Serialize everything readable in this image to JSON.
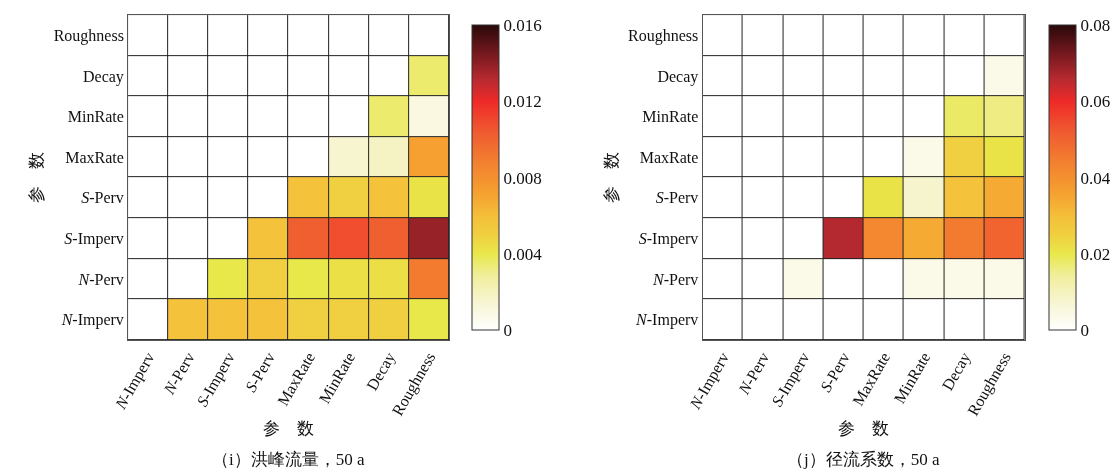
{
  "chart_data": [
    {
      "type": "heatmap",
      "title": "（i）洪峰流量，50 a",
      "xlabel": "参　数",
      "ylabel": "参　数",
      "categories": [
        "N-Imperv",
        "N-Perv",
        "S-Imperv",
        "S-Perv",
        "MaxRate",
        "MinRate",
        "Decay",
        "Roughness"
      ],
      "y_categories": [
        "Roughness",
        "Decay",
        "MinRate",
        "MaxRate",
        "S-Perv",
        "S-Imperv",
        "N-Perv",
        "N-Imperv"
      ],
      "cells": [
        [
          0,
          0,
          0,
          0,
          0,
          0,
          0,
          0
        ],
        [
          0,
          0,
          0,
          0,
          0,
          0,
          0,
          0.0035
        ],
        [
          0,
          0,
          0,
          0,
          0,
          0,
          0.0035,
          0.001
        ],
        [
          0,
          0,
          0,
          0,
          0,
          0.0015,
          0.0018,
          0.0072
        ],
        [
          0,
          0,
          0,
          0,
          0.0058,
          0.005,
          0.0058,
          0.0042
        ],
        [
          0,
          0,
          0,
          0.0058,
          0.0102,
          0.0108,
          0.0102,
          0.0138
        ],
        [
          0,
          0,
          0.004,
          0.005,
          0.004,
          0.0043,
          0.0044,
          0.009
        ],
        [
          0,
          0.0058,
          0.0058,
          0.0058,
          0.005,
          0.005,
          0.005,
          0.004
        ]
      ],
      "clim": [
        0,
        0.016
      ],
      "cticks": [
        0,
        0.004,
        0.008,
        0.012,
        0.016
      ]
    },
    {
      "type": "heatmap",
      "title": "（j）径流系数，50 a",
      "xlabel": "参　数",
      "ylabel": "参　数",
      "categories": [
        "N-Imperv",
        "N-Perv",
        "S-Imperv",
        "S-Perv",
        "MaxRate",
        "MinRate",
        "Decay",
        "Roughness"
      ],
      "y_categories": [
        "Roughness",
        "Decay",
        "MinRate",
        "MaxRate",
        "S-Perv",
        "S-Imperv",
        "N-Perv",
        "N-Imperv"
      ],
      "cells": [
        [
          0,
          0,
          0,
          0,
          0,
          0,
          0,
          0
        ],
        [
          0,
          0,
          0,
          0,
          0,
          0,
          0,
          0.004
        ],
        [
          0,
          0,
          0,
          0,
          0,
          0,
          0.018,
          0.016
        ],
        [
          0,
          0,
          0,
          0,
          0,
          0.004,
          0.025,
          0.021
        ],
        [
          0,
          0,
          0,
          0,
          0.021,
          0.008,
          0.029,
          0.034
        ],
        [
          0,
          0,
          0,
          0.066,
          0.042,
          0.034,
          0.045,
          0.05
        ],
        [
          0,
          0,
          0.004,
          0,
          0,
          0.004,
          0.004,
          0.004
        ],
        [
          0,
          0,
          0,
          0,
          0,
          0,
          0,
          0
        ]
      ],
      "clim": [
        0,
        0.08
      ],
      "cticks": [
        0,
        0.02,
        0.04,
        0.06,
        0.08
      ]
    }
  ]
}
